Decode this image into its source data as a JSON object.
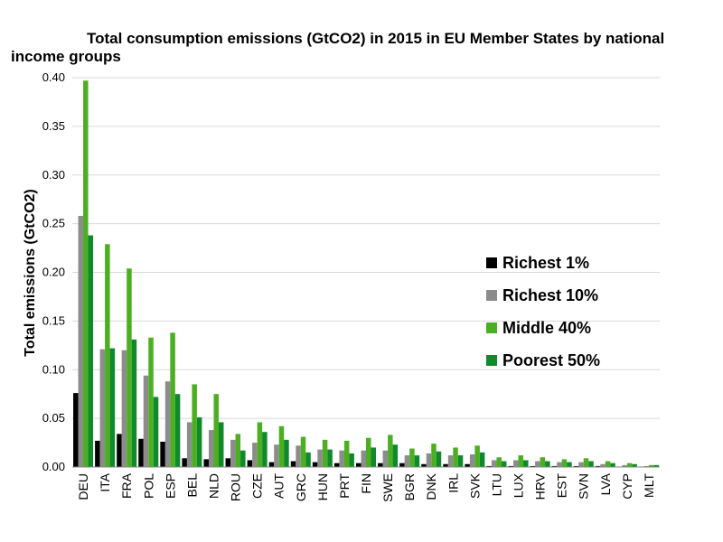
{
  "chart_data": {
    "type": "bar",
    "title_line1": "Total consumption emissions (GtCO2) in 2015 in EU Member States by national",
    "title_line2": "income groups",
    "xlabel": "",
    "ylabel": "Total emissions (GtCO2)",
    "ylim": [
      0,
      0.4
    ],
    "yticks": [
      "0.00",
      "0.05",
      "0.10",
      "0.15",
      "0.20",
      "0.25",
      "0.30",
      "0.35",
      "0.40"
    ],
    "grid": true,
    "legend_position": "right",
    "categories": [
      "DEU",
      "ITA",
      "FRA",
      "POL",
      "ESP",
      "BEL",
      "NLD",
      "ROU",
      "CZE",
      "AUT",
      "GRC",
      "HUN",
      "PRT",
      "FIN",
      "SWE",
      "BGR",
      "DNK",
      "IRL",
      "SVK",
      "LTU",
      "LUX",
      "HRV",
      "EST",
      "SVN",
      "LVA",
      "CYP",
      "MLT"
    ],
    "series": [
      {
        "name": "Richest 1%",
        "color": "#000000",
        "values": [
          0.076,
          0.027,
          0.034,
          0.029,
          0.026,
          0.009,
          0.008,
          0.009,
          0.007,
          0.005,
          0.006,
          0.005,
          0.004,
          0.004,
          0.004,
          0.004,
          0.003,
          0.003,
          0.003,
          0.001,
          0.001,
          0.001,
          0.001,
          0.001,
          0.001,
          0.0005,
          0.0005
        ]
      },
      {
        "name": "Richest 10%",
        "color": "#8c8c8c",
        "values": [
          0.258,
          0.121,
          0.12,
          0.094,
          0.088,
          0.046,
          0.038,
          0.028,
          0.025,
          0.023,
          0.022,
          0.018,
          0.017,
          0.017,
          0.017,
          0.012,
          0.014,
          0.012,
          0.013,
          0.007,
          0.007,
          0.006,
          0.005,
          0.005,
          0.003,
          0.002,
          0.001
        ]
      },
      {
        "name": "Middle 40%",
        "color": "#4caf22",
        "values": [
          0.397,
          0.229,
          0.204,
          0.133,
          0.138,
          0.085,
          0.075,
          0.034,
          0.046,
          0.042,
          0.031,
          0.028,
          0.027,
          0.03,
          0.033,
          0.019,
          0.024,
          0.02,
          0.022,
          0.01,
          0.012,
          0.01,
          0.008,
          0.009,
          0.006,
          0.004,
          0.002
        ]
      },
      {
        "name": "Poorest 50%",
        "color": "#0f8a2a",
        "values": [
          0.238,
          0.122,
          0.131,
          0.072,
          0.075,
          0.051,
          0.046,
          0.017,
          0.036,
          0.028,
          0.015,
          0.018,
          0.014,
          0.02,
          0.023,
          0.012,
          0.016,
          0.012,
          0.015,
          0.006,
          0.007,
          0.006,
          0.005,
          0.006,
          0.004,
          0.003,
          0.002
        ]
      }
    ]
  }
}
